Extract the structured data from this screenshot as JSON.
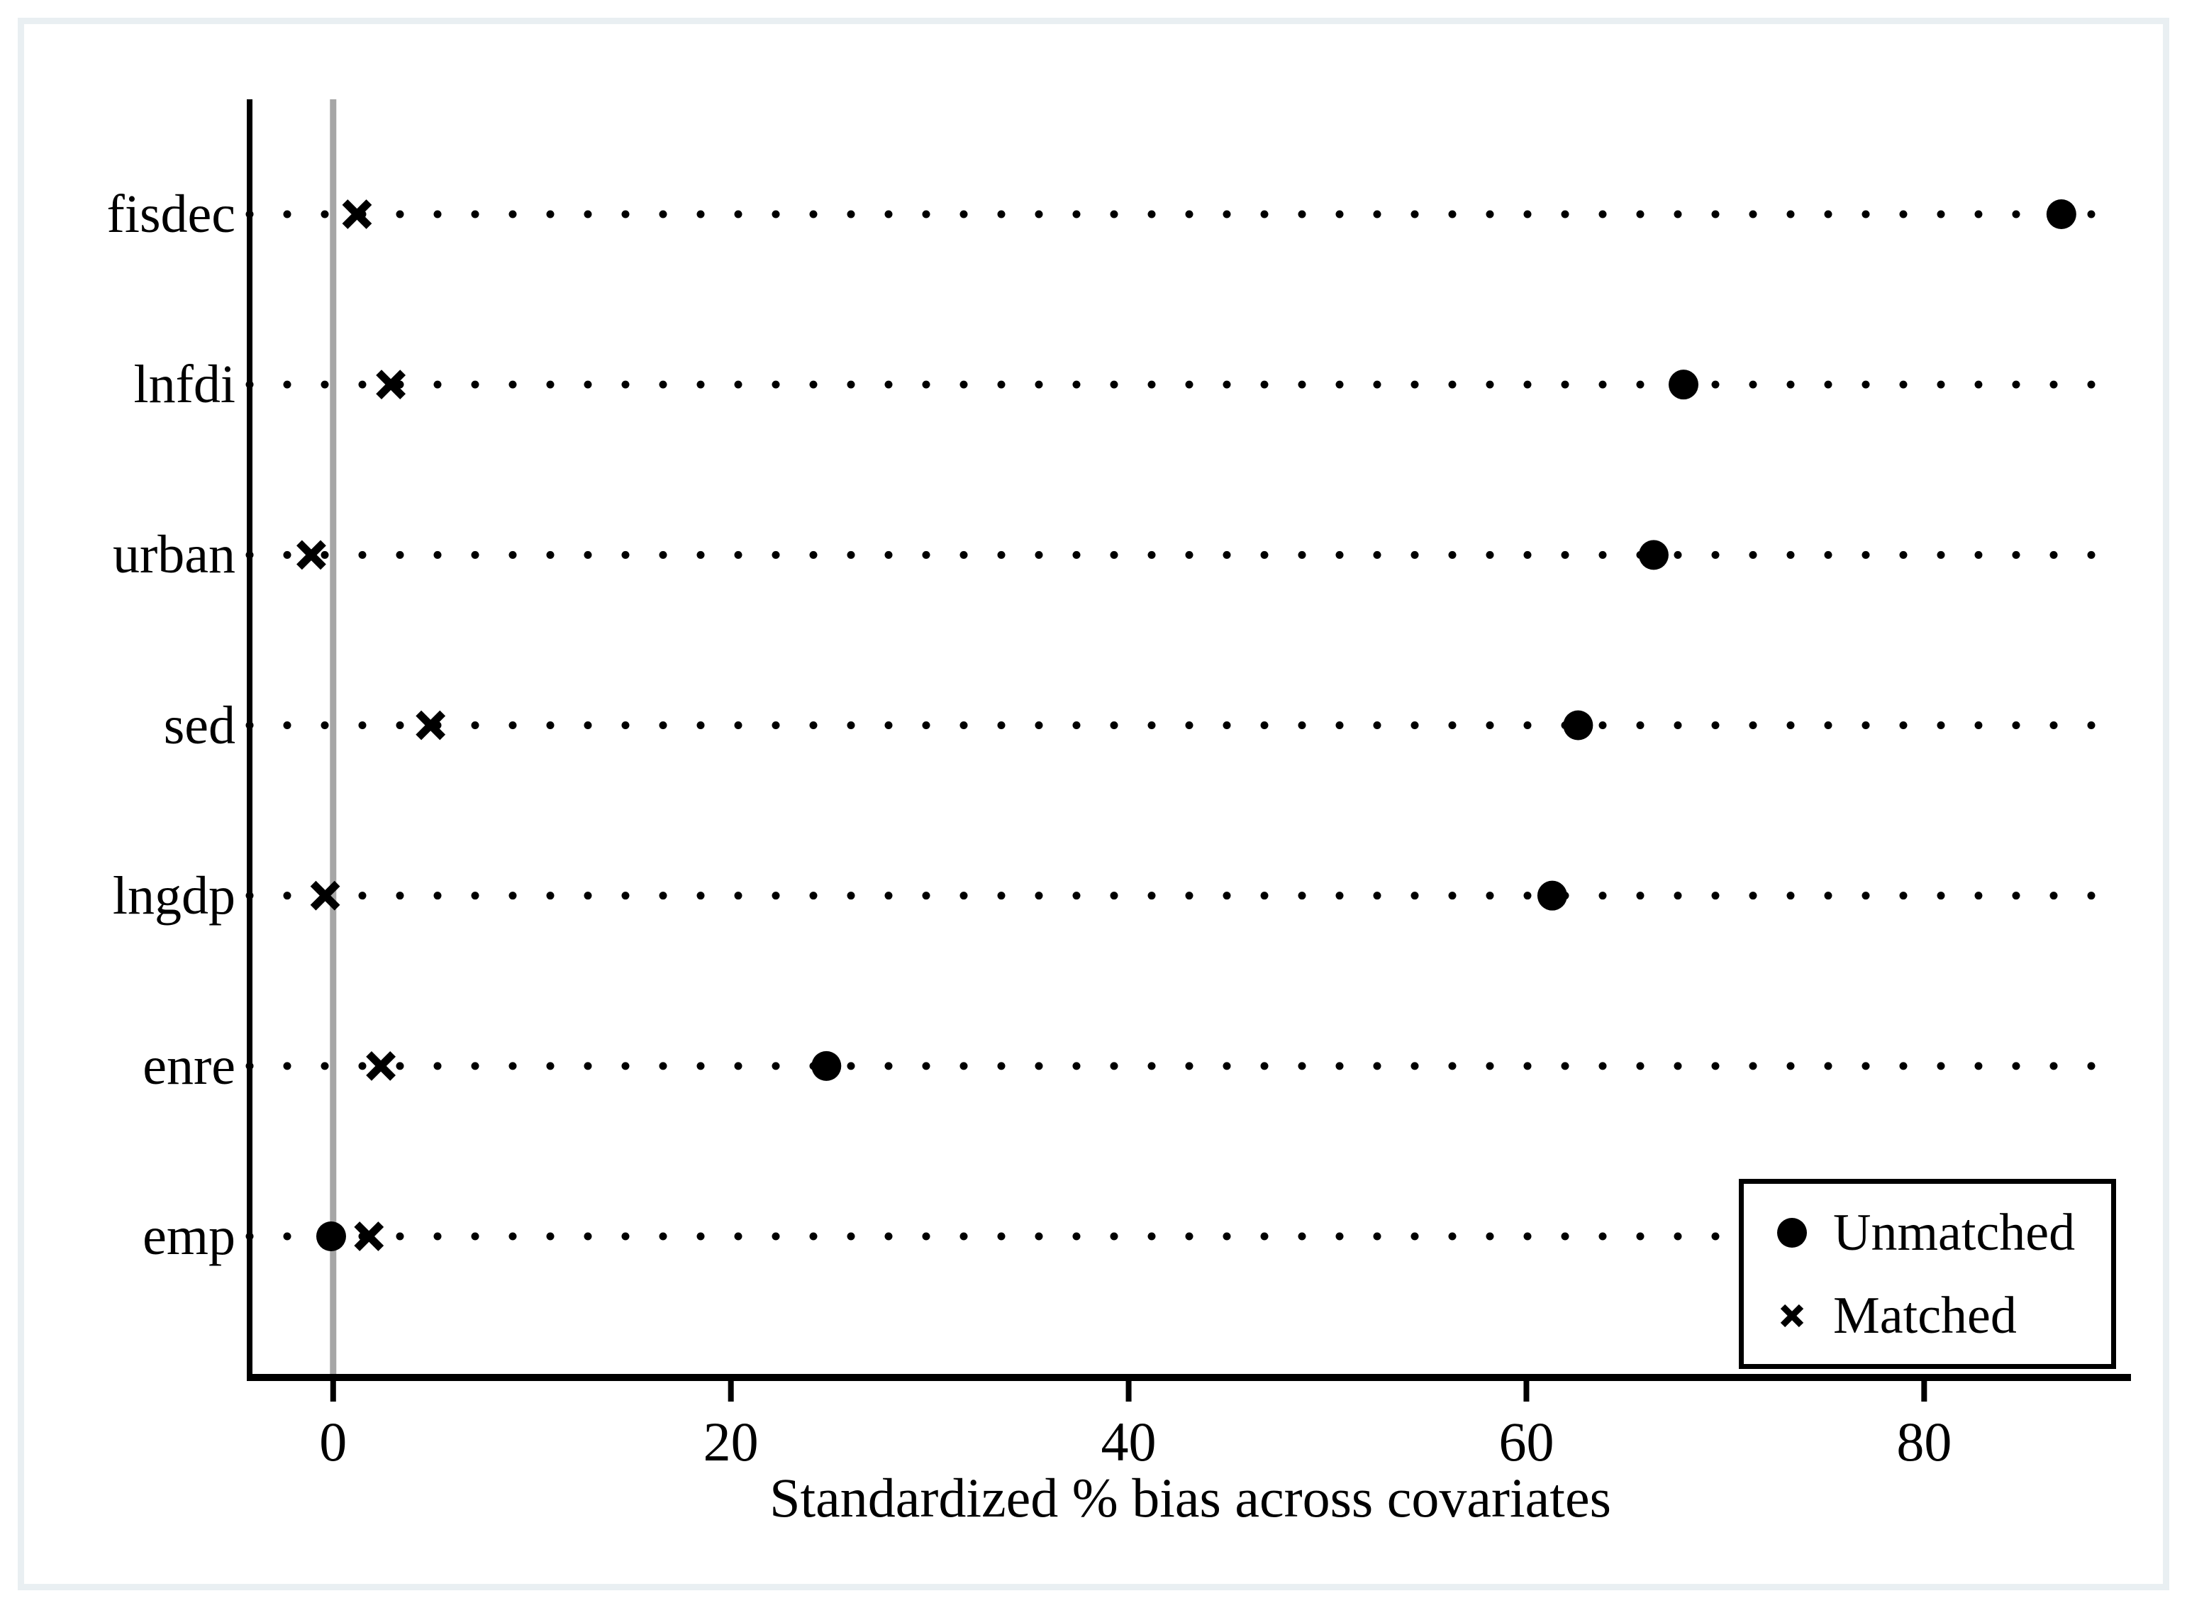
{
  "chart_data": {
    "type": "scatter",
    "title": "",
    "xlabel": "Standardized % bias across covariates",
    "ylabel": "",
    "categories": [
      "fisdec",
      "lnfdi",
      "urban",
      "sed",
      "lngdp",
      "enre",
      "emp"
    ],
    "series": [
      {
        "name": "Unmatched",
        "marker": "circle",
        "values": [
          86.9,
          67.9,
          66.4,
          62.6,
          61.3,
          24.8,
          -0.1
        ]
      },
      {
        "name": "Matched",
        "marker": "x",
        "values": [
          1.2,
          2.9,
          -1.1,
          4.9,
          -0.4,
          2.4,
          1.8
        ]
      }
    ],
    "x_ticks": [
      0,
      20,
      40,
      60,
      80
    ],
    "xlim": [
      -4.2,
      90.4
    ],
    "zero_reference_line": 0,
    "grid": "horizontal dotted leader lines per category",
    "legend_position": "inside bottom-right",
    "colors": {
      "marker": "#000000",
      "zero_line": "#a6a6a6",
      "axis": "#000000",
      "leader_dots": "#000000",
      "frame_border": "#e9eff2",
      "background": "#ffffff",
      "text": "#000000"
    }
  }
}
